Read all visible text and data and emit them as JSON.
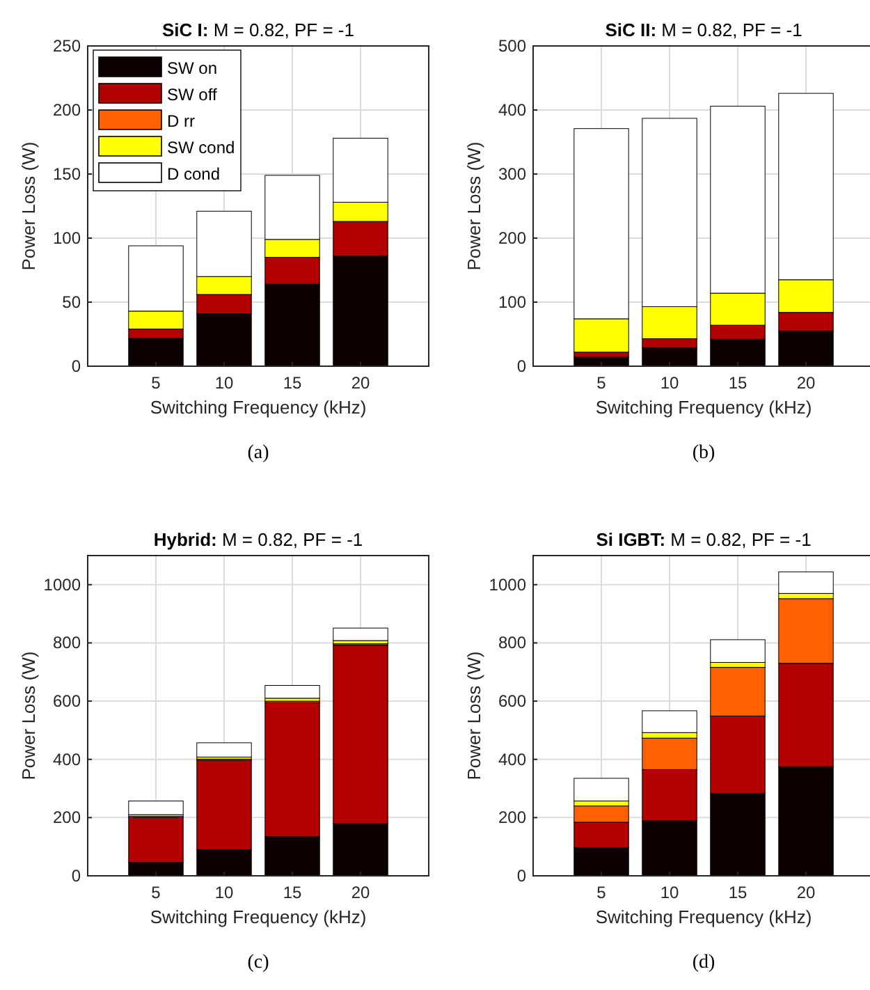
{
  "chart_data": [
    {
      "type": "bar",
      "stacked": true,
      "title": "SiC I: M = 0.82, PF = -1",
      "xlabel": "Switching Frequency (kHz)",
      "ylabel": "Power Loss (W)",
      "annotations": [
        "(a)"
      ],
      "x": [
        5,
        10,
        15,
        20
      ],
      "xlim": [
        0,
        25
      ],
      "xticks": [
        5,
        10,
        15,
        20
      ],
      "ylim": [
        0,
        250
      ],
      "yticks": [
        0,
        50,
        100,
        150,
        200,
        250
      ],
      "grid": true,
      "legend": "top left",
      "series": [
        {
          "name": "SW on",
          "color": "#0c0000",
          "values": [
            22,
            41,
            64,
            86
          ]
        },
        {
          "name": "SW off",
          "color": "#b30000",
          "values": [
            7,
            15,
            21,
            27
          ]
        },
        {
          "name": "D rr",
          "color": "#ff6000",
          "values": [
            0,
            0,
            0,
            0
          ]
        },
        {
          "name": "SW cond",
          "color": "#ffff00",
          "values": [
            14,
            14,
            14,
            15
          ]
        },
        {
          "name": "D cond",
          "color": "#ffffff",
          "values": [
            51,
            51,
            50,
            50
          ]
        }
      ]
    },
    {
      "type": "bar",
      "stacked": true,
      "title": "SiC II: M = 0.82, PF = -1",
      "xlabel": "Switching Frequency (kHz)",
      "ylabel": "Power Loss (W)",
      "annotations": [
        "(b)"
      ],
      "x": [
        5,
        10,
        15,
        20
      ],
      "xlim": [
        0,
        25
      ],
      "xticks": [
        5,
        10,
        15,
        20
      ],
      "ylim": [
        0,
        500
      ],
      "yticks": [
        0,
        100,
        200,
        300,
        400,
        500
      ],
      "grid": true,
      "series": [
        {
          "color": "#0c0000",
          "values": [
            14,
            29,
            42,
            55
          ]
        },
        {
          "color": "#b30000",
          "values": [
            8,
            14,
            22,
            29
          ]
        },
        {
          "color": "#ff6000",
          "values": [
            0,
            0,
            0,
            0
          ]
        },
        {
          "color": "#ffff00",
          "values": [
            52,
            50,
            50,
            51
          ]
        },
        {
          "color": "#ffffff",
          "values": [
            297,
            294,
            292,
            291
          ]
        }
      ]
    },
    {
      "type": "bar",
      "stacked": true,
      "title": "Hybrid: M = 0.82, PF = -1",
      "xlabel": "Switching Frequency (kHz)",
      "ylabel": "Power Loss (W)",
      "annotations": [
        "(c)"
      ],
      "x": [
        5,
        10,
        15,
        20
      ],
      "xlim": [
        0,
        25
      ],
      "xticks": [
        5,
        10,
        15,
        20
      ],
      "ylim": [
        0,
        1100
      ],
      "yticks": [
        0,
        200,
        400,
        600,
        800,
        1000
      ],
      "grid": true,
      "series": [
        {
          "color": "#0c0000",
          "values": [
            46,
            90,
            135,
            179
          ]
        },
        {
          "color": "#b30000",
          "values": [
            154,
            307,
            460,
            613
          ]
        },
        {
          "color": "#ff6000",
          "values": [
            4,
            4,
            5,
            5
          ]
        },
        {
          "color": "#ffff00",
          "values": [
            6,
            7,
            10,
            11
          ]
        },
        {
          "color": "#ffffff",
          "values": [
            47,
            49,
            44,
            43
          ]
        }
      ]
    },
    {
      "type": "bar",
      "stacked": true,
      "title": "Si IGBT: M = 0.82, PF = -1",
      "xlabel": "Switching Frequency (kHz)",
      "ylabel": "Power Loss (W)",
      "annotations": [
        "(d)"
      ],
      "x": [
        5,
        10,
        15,
        20
      ],
      "xlim": [
        0,
        25
      ],
      "xticks": [
        5,
        10,
        15,
        20
      ],
      "ylim": [
        0,
        1100
      ],
      "yticks": [
        0,
        200,
        400,
        600,
        800,
        1000
      ],
      "grid": true,
      "series": [
        {
          "color": "#0c0000",
          "values": [
            97,
            189,
            283,
            375
          ]
        },
        {
          "color": "#b30000",
          "values": [
            87,
            176,
            266,
            355
          ]
        },
        {
          "color": "#ff6000",
          "values": [
            56,
            108,
            167,
            222
          ]
        },
        {
          "color": "#ffff00",
          "values": [
            17,
            19,
            17,
            18
          ]
        },
        {
          "color": "#ffffff",
          "values": [
            78,
            75,
            78,
            74
          ]
        }
      ]
    }
  ]
}
